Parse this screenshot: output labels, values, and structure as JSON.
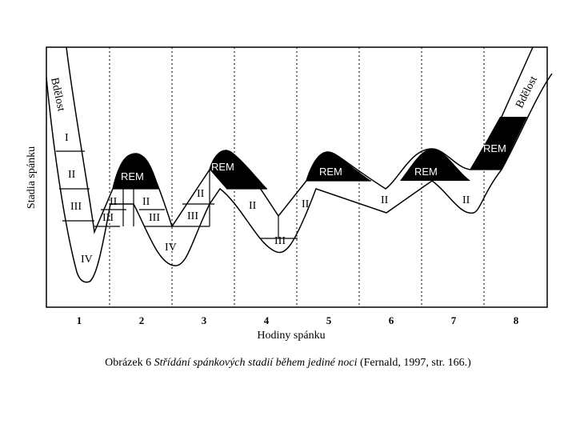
{
  "axes": {
    "y_label": "Stadia spánku",
    "x_label": "Hodiny spánku",
    "x_ticks": [
      "1",
      "2",
      "3",
      "4",
      "5",
      "6",
      "7",
      "8"
    ]
  },
  "labels": {
    "awake": "Bdělost",
    "stage_1": "I",
    "stage_2": "II",
    "stage_3": "III",
    "stage_4": "IV",
    "rem": "REM"
  },
  "caption": {
    "prefix": "Obrázek 6 ",
    "title": "Střídání spánkových stadií během jediné noci",
    "source": " (Fernald, 1997, str. 166.)"
  }
}
